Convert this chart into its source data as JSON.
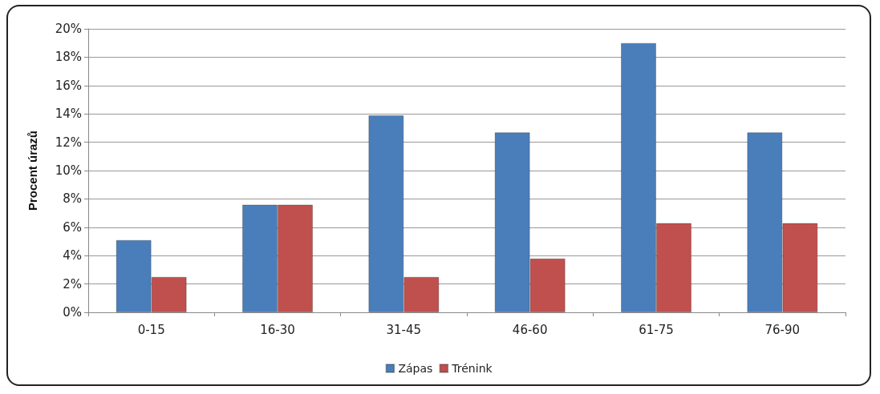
{
  "chart_data": {
    "type": "bar",
    "ylabel": "Procent úrazů",
    "categories": [
      "0-15",
      "16-30",
      "31-45",
      "46-60",
      "61-75",
      "76-90"
    ],
    "series": [
      {
        "name": "Zápas",
        "color": "#4a7ebb",
        "values": [
          5.1,
          7.6,
          13.9,
          12.7,
          19.0,
          12.7
        ]
      },
      {
        "name": "Trénink",
        "color": "#c0504d",
        "values": [
          2.5,
          7.6,
          2.5,
          3.8,
          6.3,
          6.3
        ]
      }
    ],
    "ylim": [
      0,
      20
    ],
    "yticks": [
      {
        "value": 0,
        "label": "0%"
      },
      {
        "value": 2,
        "label": "2%"
      },
      {
        "value": 4,
        "label": "4%"
      },
      {
        "value": 6,
        "label": "6%"
      },
      {
        "value": 8,
        "label": "8%"
      },
      {
        "value": 10,
        "label": "10%"
      },
      {
        "value": 12,
        "label": "12%"
      },
      {
        "value": 14,
        "label": "14%"
      },
      {
        "value": 16,
        "label": "16%"
      },
      {
        "value": 18,
        "label": "18%"
      },
      {
        "value": 20,
        "label": "20%"
      }
    ],
    "grid": "y",
    "legend": "bottom"
  }
}
